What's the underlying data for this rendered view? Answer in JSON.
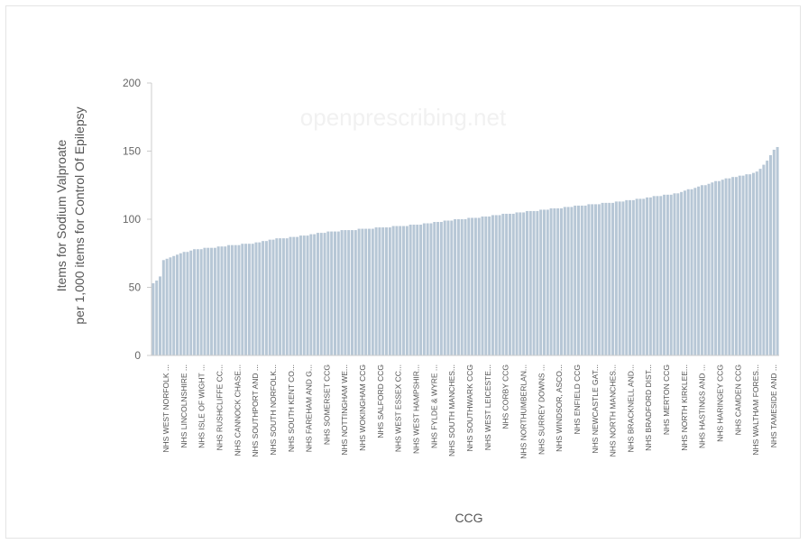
{
  "watermark": "openprescribing.net",
  "chart_data": {
    "type": "bar",
    "ylabel_lines": [
      "Items for Sodium Valproate",
      "per 1,000 items for Control Of Epilepsy"
    ],
    "xlabel": "CCG",
    "ylim": [
      0,
      200
    ],
    "yticks": [
      0,
      50,
      100,
      150,
      200
    ],
    "bar_color": "#b7c7d6",
    "grid": false,
    "visible_category_labels": [
      "NHS WEST NORFOLK ...",
      "NHS LINCOLNSHIRE ...",
      "NHS ISLE OF WIGHT ...",
      "NHS RUSHCLIFFE CC...",
      "NHS CANNOCK CHASE...",
      "NHS SOUTHPORT AND ...",
      "NHS SOUTH NORFOLK...",
      "NHS SOUTH KENT CO...",
      "NHS FAREHAM AND G...",
      "NHS SOMERSET CCG",
      "NHS NOTTINGHAM WE...",
      "NHS WOKINGHAM CCG",
      "NHS SALFORD CCG",
      "NHS WEST ESSEX CC...",
      "NHS WEST HAMPSHIR...",
      "NHS FYLDE & WYRE ...",
      "NHS SOUTH MANCHES...",
      "NHS SOUTHWARK CCG",
      "NHS WEST LEICESTE...",
      "NHS CORBY CCG",
      "NHS NORTHUMBERLAN...",
      "NHS SURREY DOWNS ...",
      "NHS WINDSOR, ASCO...",
      "NHS ENFIELD CCG",
      "NHS NEWCASTLE GAT...",
      "NHS NORTH MANCHES...",
      "NHS BRACKNELL AND...",
      "NHS BRADFORD DIST...",
      "NHS MERTON CCG",
      "NHS NORTH KIRKLEE...",
      "NHS HASTINGS AND ...",
      "NHS HARINGEY CCG",
      "NHS CAMDEN CCG",
      "NHS WALTHAM FORES...",
      "NHS TAMESIDE AND ..."
    ],
    "values": [
      53,
      55,
      58,
      70,
      71,
      72,
      73,
      74,
      75,
      76,
      76,
      77,
      78,
      78,
      78,
      79,
      79,
      79,
      79,
      80,
      80,
      80,
      81,
      81,
      81,
      81,
      82,
      82,
      82,
      82,
      83,
      83,
      84,
      84,
      85,
      85,
      86,
      86,
      86,
      86,
      87,
      87,
      87,
      88,
      88,
      88,
      89,
      89,
      90,
      90,
      90,
      91,
      91,
      91,
      91,
      92,
      92,
      92,
      92,
      92,
      93,
      93,
      93,
      93,
      93,
      94,
      94,
      94,
      94,
      94,
      95,
      95,
      95,
      95,
      95,
      96,
      96,
      96,
      96,
      97,
      97,
      97,
      98,
      98,
      98,
      99,
      99,
      99,
      100,
      100,
      100,
      100,
      101,
      101,
      101,
      101,
      102,
      102,
      102,
      103,
      103,
      103,
      104,
      104,
      104,
      104,
      105,
      105,
      105,
      106,
      106,
      106,
      106,
      107,
      107,
      107,
      108,
      108,
      108,
      108,
      109,
      109,
      109,
      110,
      110,
      110,
      110,
      111,
      111,
      111,
      111,
      112,
      112,
      112,
      112,
      113,
      113,
      113,
      114,
      114,
      114,
      115,
      115,
      115,
      116,
      116,
      117,
      117,
      117,
      118,
      118,
      118,
      119,
      119,
      120,
      121,
      122,
      122,
      123,
      124,
      125,
      125,
      126,
      127,
      128,
      128,
      129,
      130,
      130,
      131,
      131,
      132,
      132,
      133,
      133,
      134,
      135,
      137,
      140,
      143,
      147,
      151,
      153
    ]
  }
}
